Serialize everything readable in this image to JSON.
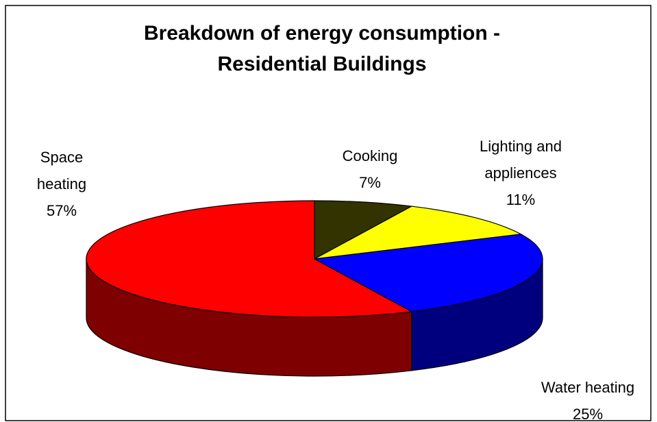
{
  "chart_data": {
    "type": "pie3d",
    "title": [
      "Breakdown of energy consumption -",
      "Residential Buildings"
    ],
    "categories": [
      "Cooking",
      "Lighting and appliences",
      "Water heating",
      "Space heating"
    ],
    "values": [
      7,
      11,
      25,
      57
    ],
    "value_labels": [
      "7%",
      "11%",
      "25%",
      "57%"
    ],
    "colors": [
      "#333300",
      "#ffff00",
      "#0000ff",
      "#ff0000"
    ]
  }
}
